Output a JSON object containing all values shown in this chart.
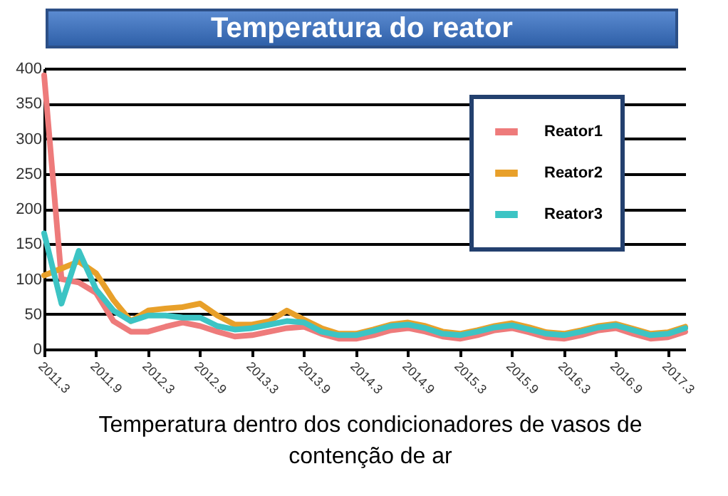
{
  "chart_data": {
    "type": "line",
    "title": "Temperatura do reator",
    "categories": [
      "2011.3",
      null,
      null,
      "2011.9",
      null,
      null,
      "2012.3",
      null,
      null,
      "2012.9",
      null,
      null,
      "2013.3",
      null,
      null,
      "2013.9",
      null,
      null,
      "2014.3",
      null,
      null,
      "2014.9",
      null,
      null,
      "2015.3",
      null,
      null,
      "2015.9",
      null,
      null,
      "2016.3",
      null,
      null,
      "2016.9",
      null,
      null,
      "2017.3",
      null
    ],
    "series": [
      {
        "name": "Reator1",
        "color": "#ee7b7b",
        "values": [
          390,
          100,
          95,
          80,
          40,
          25,
          25,
          32,
          38,
          33,
          25,
          18,
          20,
          25,
          30,
          32,
          22,
          15,
          15,
          20,
          27,
          30,
          25,
          18,
          15,
          20,
          27,
          30,
          24,
          17,
          15,
          20,
          27,
          30,
          22,
          15,
          17,
          25
        ]
      },
      {
        "name": "Reator2",
        "color": "#e8a02a",
        "values": [
          105,
          115,
          125,
          108,
          70,
          40,
          55,
          58,
          60,
          65,
          48,
          35,
          35,
          40,
          55,
          42,
          30,
          22,
          22,
          28,
          35,
          38,
          33,
          25,
          22,
          27,
          33,
          37,
          31,
          24,
          22,
          27,
          33,
          36,
          29,
          22,
          24,
          32
        ]
      },
      {
        "name": "Reator3",
        "color": "#3cc4c4",
        "values": [
          165,
          65,
          140,
          85,
          55,
          40,
          48,
          48,
          45,
          45,
          33,
          28,
          30,
          35,
          40,
          38,
          25,
          20,
          20,
          26,
          33,
          35,
          30,
          22,
          20,
          25,
          31,
          34,
          28,
          22,
          20,
          25,
          31,
          34,
          27,
          20,
          22,
          30
        ]
      }
    ],
    "ylim": [
      0,
      400
    ],
    "yticks": [
      0,
      50,
      100,
      150,
      200,
      250,
      300,
      350,
      400
    ],
    "grid": "y",
    "legend": "top right",
    "annotations": [
      "Temperatura dentro dos condicionadores de vasos de contenção de ar"
    ]
  }
}
